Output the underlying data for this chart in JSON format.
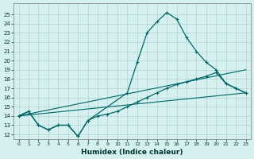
{
  "title": "",
  "xlabel": "Humidex (Indice chaleur)",
  "background_color": "#d6f0f0",
  "grid_color": "#afd4d4",
  "line_color": "#006666",
  "xlim": [
    -0.5,
    23.5
  ],
  "ylim": [
    11.5,
    26.2
  ],
  "xticks": [
    0,
    1,
    2,
    3,
    4,
    5,
    6,
    7,
    8,
    9,
    10,
    11,
    12,
    13,
    14,
    15,
    16,
    17,
    18,
    19,
    20,
    21,
    22,
    23
  ],
  "yticks": [
    12,
    13,
    14,
    15,
    16,
    17,
    18,
    19,
    20,
    21,
    22,
    23,
    24,
    25
  ],
  "curve_main_x": [
    0,
    1,
    2,
    3,
    4,
    5,
    6,
    7,
    11,
    12,
    13,
    14,
    15,
    16,
    17,
    18,
    19,
    20,
    21,
    22,
    23
  ],
  "curve_main_y": [
    14,
    14.5,
    13,
    12.5,
    13,
    13,
    11.8,
    13.5,
    16.5,
    19.8,
    23,
    24.2,
    25.2,
    24.5,
    22.5,
    21,
    19.8,
    19,
    17.5,
    17,
    16.5
  ],
  "curve_lower_x": [
    0,
    1,
    2,
    3,
    4,
    5,
    6,
    7,
    8,
    9,
    10,
    11,
    12,
    13,
    14,
    15,
    16,
    17,
    18,
    19,
    20,
    21,
    22,
    23
  ],
  "curve_lower_y": [
    14,
    14.5,
    13,
    12.5,
    13,
    13,
    11.8,
    13.5,
    14.0,
    14.2,
    14.5,
    15.0,
    15.5,
    16.0,
    16.5,
    17.0,
    17.4,
    17.7,
    18.0,
    18.3,
    18.7,
    17.5,
    17.0,
    16.5
  ],
  "line1_x": [
    0,
    23
  ],
  "line1_y": [
    14,
    19.0
  ],
  "line2_x": [
    0,
    23
  ],
  "line2_y": [
    14,
    16.5
  ]
}
